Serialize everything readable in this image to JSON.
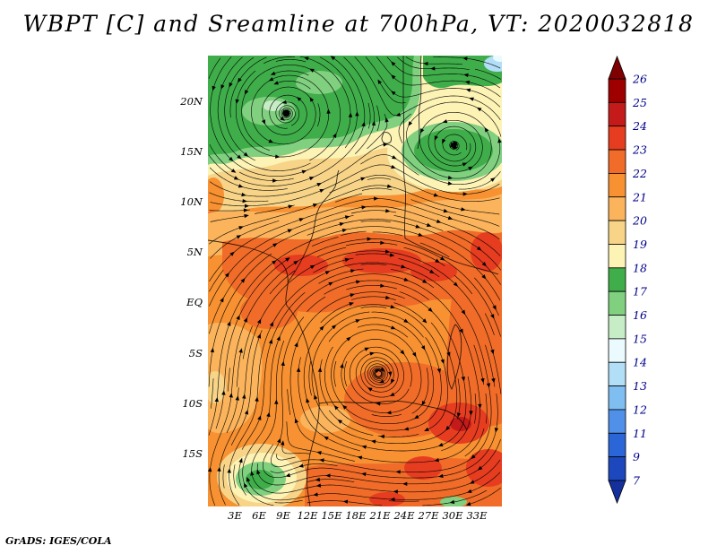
{
  "title": "WBPT [C] and Sreamline at 700hPa, VT: 2020032818",
  "credit": "GrADS: IGES/COLA",
  "axes": {
    "lat_labels": [
      "20N",
      "15N",
      "10N",
      "5N",
      "EQ",
      "5S",
      "10S",
      "15S"
    ],
    "lon_labels": [
      "3E",
      "6E",
      "9E",
      "12E",
      "15E",
      "18E",
      "21E",
      "24E",
      "27E",
      "30E",
      "33E"
    ]
  },
  "colorbar": {
    "levels": [
      "26",
      "25",
      "24",
      "23",
      "22",
      "21",
      "20",
      "19",
      "18",
      "17",
      "16",
      "15",
      "14",
      "13",
      "12",
      "11",
      "9",
      "7"
    ],
    "label_color": "#00008b",
    "palette_by_band": {
      "26+": "#7f0000",
      "25-26": "#9e0000",
      "24-25": "#c41a1a",
      "23-24": "#e63c20",
      "22-23": "#f06c28",
      "21-22": "#f79132",
      "20-21": "#fbb45c",
      "19-20": "#f7d488",
      "18-19": "#fdf3b5",
      "17-18": "#3fae4a",
      "16-17": "#80d080",
      "15-16": "#c6edc6",
      "14-15": "#eafaff",
      "13-14": "#b2def8",
      "12-13": "#7fbef1",
      "11-12": "#5090e8",
      "9-11": "#2a66d8",
      "7-9": "#1d47bc",
      "<7": "#13309c"
    }
  },
  "chart_data": {
    "type": "heatmap",
    "title": "WBPT [C] and Sreamline at 700hPa, VT: 2020032818",
    "variable": "WBPT",
    "units": "C",
    "pressure_level_hPa": 700,
    "valid_time": "2020032818",
    "overlay": "streamlines with arrowheads",
    "x_tick_labels": [
      "3E",
      "6E",
      "9E",
      "12E",
      "15E",
      "18E",
      "21E",
      "24E",
      "27E",
      "30E",
      "33E"
    ],
    "y_tick_labels": [
      "20N",
      "15N",
      "10N",
      "5N",
      "EQ",
      "5S",
      "10S",
      "15S"
    ],
    "x_range": "approx 0E to 36E",
    "y_range": "approx 20S to 24N",
    "contour_levels_C": [
      7,
      9,
      11,
      12,
      13,
      14,
      15,
      16,
      17,
      18,
      19,
      20,
      21,
      22,
      23,
      24,
      25,
      26
    ],
    "legend_position": "right",
    "grid": false,
    "field_summary": [
      {
        "region": "northern band, north of about 13N",
        "wbpt_C": "16-18 (green) with pale-yellow 18-19 fringes"
      },
      {
        "region": "green cell near 27E, 15N",
        "wbpt_C": "16-18"
      },
      {
        "region": "far northeast corner",
        "wbpt_C": "13-15 (pale blue)"
      },
      {
        "region": "transition band 8N-13N",
        "wbpt_C": "19-21 (tan/light orange)"
      },
      {
        "region": "equatorial band 2N-7N",
        "wbpt_C": "22-24 (deep orange maxima)"
      },
      {
        "region": "interior EQ-15S",
        "wbpt_C": "21-23 (orange)"
      },
      {
        "region": "southeast 24-33E, 8-18S",
        "wbpt_C": "22-24 with local 24-25 core"
      },
      {
        "region": "southwest vortex near 6E, 17S",
        "wbpt_C": "16-19 local cool minimum (green core)"
      }
    ],
    "circulation_features": [
      {
        "type": "cyclonic vortex",
        "lon": "9E",
        "lat": "20N"
      },
      {
        "type": "cyclonic vortex",
        "lon": "27E",
        "lat": "15N"
      },
      {
        "type": "broad vortex",
        "lon": "18E",
        "lat": "7S"
      },
      {
        "type": "tight spiral vortex",
        "lon": "6E",
        "lat": "17S"
      },
      {
        "type": "vortex",
        "lon": "30E",
        "lat": "14S"
      }
    ]
  }
}
